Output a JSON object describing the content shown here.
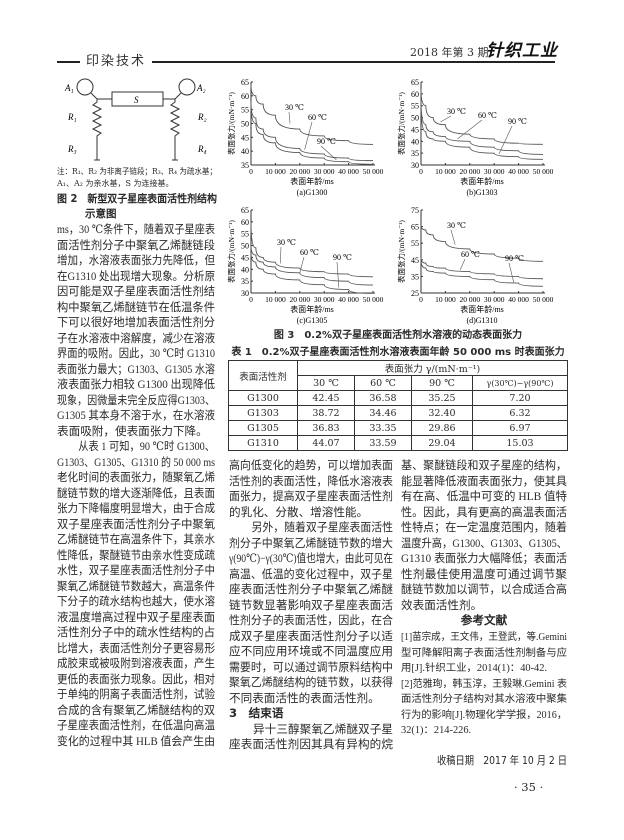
{
  "header": {
    "section": "印染技术",
    "issue": "2018 年第 3 期",
    "journal_logo": "针织工业"
  },
  "figure2": {
    "labels": {
      "a1": "A₁",
      "a2": "A₂",
      "s": "S",
      "r1": "R₁",
      "r2": "R₂",
      "r3": "R₃",
      "r4": "R₄"
    },
    "note": [
      "注：R₁、R₂ 为非离子链段；R₃、R₄ 为疏水基；",
      "A₁、A₂ 为亲水基，S 为连接基。"
    ],
    "caption": [
      "图 2　新型双子星座表面活性剂结构",
      "示意图"
    ]
  },
  "left_column": [
    {
      "t": "ms，30 ℃条件下，随着双子星座表"
    },
    {
      "t": "面活性剂分子中聚氧乙烯醚链段"
    },
    {
      "t": "增加，水溶液表面张力先降低，但"
    },
    {
      "t": "在G1310 处出现增大现象。分析原"
    },
    {
      "t": "因可能是双子星座表面活性剂结"
    },
    {
      "t": "构中聚氧乙烯醚链节在低温条件"
    },
    {
      "t": "下可以很好地增加表面活性剂分"
    },
    {
      "t": "子在水溶液中溶解度，减少在溶液"
    },
    {
      "t": "界面的吸附。因此，30 ℃时 G1310"
    },
    {
      "t": "表面张力最大；G1303、G1305 水溶"
    },
    {
      "t": "液表面张力相较 G1300 出现降低"
    },
    {
      "t": "现象，因微量未完全反应得G1303、"
    },
    {
      "t": "G1305 其本身不溶于水，在水溶液"
    },
    {
      "t": "表面吸附，使表面张力下降。",
      "c": "last"
    },
    {
      "t": "从表 1 可知，90 ℃时 G1300、",
      "c": "ind"
    },
    {
      "t": "G1303、G1305、G1310 的 50 000 ms"
    },
    {
      "t": "老化时间的表面张力，随聚氧乙烯"
    },
    {
      "t": "醚链节数的增大逐渐降低，且表面"
    },
    {
      "t": "张力下降幅度明显增大，由于合成"
    },
    {
      "t": "双子星座表面活性剂分子中聚氧"
    },
    {
      "t": "乙烯醚链节在高温条件下，其亲水"
    },
    {
      "t": "性降低，聚醚链节由亲水性变成疏"
    },
    {
      "t": "水性，双子星座表面活性剂分子中"
    },
    {
      "t": "聚氧乙烯醚链节数越大，高温条件"
    },
    {
      "t": "下分子的疏水结构也越大，使水溶"
    },
    {
      "t": "液温度增高过程中双子星座表面"
    },
    {
      "t": "活性剂分子中的疏水性结构的占"
    },
    {
      "t": "比增大，表面活性剂分子更容易形"
    },
    {
      "t": "成胶束或被吸附到溶液表面，产生"
    },
    {
      "t": "更低的表面张力现象。因此，相对"
    },
    {
      "t": "于单纯的阴离子表面活性剂，试验"
    },
    {
      "t": "合成的含有聚氧乙烯醚结构的双"
    },
    {
      "t": "子星座表面活性剂，在低温向高温"
    },
    {
      "t": "变化的过程中其 HLB 值会产生由"
    }
  ],
  "middle_column": [
    {
      "t": "高向低变化的趋势，可以增加表面"
    },
    {
      "t": "活性剂的表面活性，降低水溶液表"
    },
    {
      "t": "面张力，提高双子星座表面活性剂"
    },
    {
      "t": "的乳化、分散、增溶性能。",
      "c": "last"
    },
    {
      "t": "另外，随着双子星座表面活性",
      "c": "ind"
    },
    {
      "t": "剂分子中聚氧乙烯醚链节数的增大"
    },
    {
      "t": "γ(90℃)−γ(30℃)值也增大，由此可见在"
    },
    {
      "t": "高温、低温的变化过程中，双子星"
    },
    {
      "t": "座表面活性剂分子中聚氧乙烯醚"
    },
    {
      "t": "链节数显著影响双子星座表面活"
    },
    {
      "t": "性剂分子的表面活性，因此，在合"
    },
    {
      "t": "成双子星座表面活性剂分子以适"
    },
    {
      "t": "应不同应用环境或不同温度应用"
    },
    {
      "t": "需要时，可以通过调节原料结构中"
    },
    {
      "t": "聚氧乙烯醚结构的链节数，以获得"
    },
    {
      "t": "不同表面活性的表面活性剂。",
      "c": "last"
    },
    {
      "t": "3　结束语",
      "c": "head"
    },
    {
      "t": "异十三醇聚氧乙烯醚双子星",
      "c": "ind"
    },
    {
      "t": "座表面活性剂因其具有异构的烷"
    }
  ],
  "right_column": [
    {
      "t": "基、聚醚链段和双子星座的结构，"
    },
    {
      "t": "能显著降低液面表面张力，使其具"
    },
    {
      "t": "有在高、低温中可变的 HLB 值特"
    },
    {
      "t": "性。因此，具有更高的高温表面活"
    },
    {
      "t": "性特点；在一定温度范围内，随着"
    },
    {
      "t": "温度升高，G1300、G1303、G1305、"
    },
    {
      "t": "G1310 表面张力大幅降低；表面活"
    },
    {
      "t": "性剂最佳使用温度可通过调节聚"
    },
    {
      "t": "醚链节数加以调节，以合成适合高"
    },
    {
      "t": "效表面活性剂。",
      "c": "last"
    },
    {
      "t": "参考文献",
      "c": "center"
    }
  ],
  "references": [
    {
      "t": "[1]苗宗成，王文伟，王登武，等.Gemini"
    },
    {
      "t": "型可降解阳离子表面活性剂制备与应"
    },
    {
      "t": "用[J].针织工业，2014(1)：40-42.",
      "c": "last"
    },
    {
      "t": "[2]范雅珣，韩玉淳，王毅琳.Gemini 表"
    },
    {
      "t": "面活性剂分子结构对其水溶液中聚集"
    },
    {
      "t": "行为的影响[J].物理化学学报，2016，"
    },
    {
      "t": "32(1)：214-226.",
      "c": "last"
    }
  ],
  "received": "收稿日期　2017 年 10 月 2 日",
  "page_number": "· 35 ·",
  "figure3": {
    "caption": "图 3　0.2%双子星座表面活性剂水溶液的动态表面张力"
  },
  "chart_data": [
    {
      "type": "line",
      "caption": "(a)G1300",
      "xlabel": "表面年龄/ms",
      "ylabel": "表面张力/(mN·m⁻¹)",
      "xlim": [
        0,
        50000
      ],
      "ylim": [
        35,
        65
      ],
      "yticks": [
        35,
        40,
        45,
        50,
        55,
        60,
        65
      ],
      "xticks": [
        0,
        10000,
        20000,
        30000,
        40000,
        50000
      ],
      "xtick_labels": [
        "0",
        "10 000",
        "20 000",
        "30 000",
        "40 000",
        "50 000"
      ],
      "x": [
        0,
        2000,
        5000,
        10000,
        20000,
        30000,
        40000,
        50000
      ],
      "series": [
        {
          "name": "30 ℃",
          "values": [
            64,
            60,
            57,
            53,
            48,
            45.5,
            43.8,
            42.45
          ]
        },
        {
          "name": "60 ℃",
          "values": [
            58,
            52,
            48,
            45,
            41,
            39,
            37.5,
            36.58
          ]
        },
        {
          "name": "90 ℃",
          "values": [
            57,
            50,
            46,
            43,
            39.5,
            37.5,
            36.2,
            35.25
          ]
        }
      ]
    },
    {
      "type": "line",
      "caption": "(b)G1303",
      "xlabel": "表面年龄/ms",
      "ylabel": "表面张力/(mN·m⁻¹)",
      "xlim": [
        0,
        50000
      ],
      "ylim": [
        30,
        65
      ],
      "yticks": [
        30,
        35,
        40,
        45,
        50,
        55,
        60,
        65
      ],
      "xticks": [
        0,
        10000,
        20000,
        30000,
        40000,
        50000
      ],
      "xtick_labels": [
        "0",
        "10 000",
        "20 000",
        "30 000",
        "40 000",
        "50 000"
      ],
      "x": [
        0,
        2000,
        5000,
        10000,
        20000,
        30000,
        40000,
        50000
      ],
      "series": [
        {
          "name": "30 ℃",
          "values": [
            62,
            55,
            50,
            47,
            43,
            41,
            39.2,
            38.72
          ]
        },
        {
          "name": "60 ℃",
          "values": [
            58,
            47,
            44,
            42,
            40,
            37.5,
            36,
            34.46
          ]
        },
        {
          "name": "90 ℃",
          "values": [
            56,
            44,
            41,
            40,
            37.5,
            35,
            33.5,
            32.4
          ]
        }
      ]
    },
    {
      "type": "line",
      "caption": "(c)G1305",
      "xlabel": "表面年龄/ms",
      "ylabel": "表面张力/(mN·m⁻¹)",
      "xlim": [
        0,
        50000
      ],
      "ylim": [
        30,
        65
      ],
      "yticks": [
        30,
        35,
        40,
        45,
        50,
        55,
        60,
        65
      ],
      "xticks": [
        0,
        10000,
        20000,
        30000,
        40000,
        50000
      ],
      "xtick_labels": [
        "0",
        "10 000",
        "20 000",
        "30 000",
        "40 000",
        "50 000"
      ],
      "x": [
        0,
        2000,
        5000,
        10000,
        20000,
        30000,
        40000,
        50000
      ],
      "series": [
        {
          "name": "30 ℃",
          "values": [
            60,
            49,
            45,
            43,
            40.5,
            39,
            38,
            36.83
          ]
        },
        {
          "name": "60 ℃",
          "values": [
            50,
            46,
            43,
            41,
            38.5,
            36.5,
            35,
            33.35
          ]
        },
        {
          "name": "90 ℃",
          "values": [
            47,
            43,
            40,
            38,
            35.5,
            33.5,
            31.5,
            29.86
          ]
        }
      ]
    },
    {
      "type": "line",
      "caption": "(d)G1310",
      "xlabel": "表面年龄/ms",
      "ylabel": "表面张力/(mN·m⁻¹)",
      "xlim": [
        0,
        50000
      ],
      "ylim": [
        25,
        75
      ],
      "yticks": [
        25,
        35,
        45,
        55,
        65,
        75
      ],
      "xticks": [
        0,
        10000,
        20000,
        30000,
        40000,
        50000
      ],
      "xtick_labels": [
        "0",
        "10 000",
        "20 000",
        "30 000",
        "40 000",
        "50 000"
      ],
      "x": [
        0,
        2000,
        5000,
        10000,
        20000,
        30000,
        40000,
        50000
      ],
      "series": [
        {
          "name": "30 ℃",
          "values": [
            66,
            63,
            60,
            56,
            51.5,
            48.5,
            46,
            44.07
          ]
        },
        {
          "name": "60 ℃",
          "values": [
            46,
            43,
            41,
            40,
            38,
            36.5,
            35,
            33.59
          ]
        },
        {
          "name": "90 ℃",
          "values": [
            45,
            40,
            38,
            37,
            35,
            33,
            31,
            29.04
          ]
        }
      ]
    }
  ],
  "table1": {
    "title": "表 1　0.2%双子星座表面活性剂水溶液表面年龄 50 000 ms 时表面张力",
    "row_header": "表面活性剂",
    "group_header": "表面张力 γ/(mN·m⁻¹)",
    "columns": [
      "30 ℃",
      "60 ℃",
      "90 ℃",
      "γ(30℃)−γ(90℃)"
    ],
    "rows": [
      {
        "name": "G1300",
        "values": [
          "42.45",
          "36.58",
          "35.25",
          "7.20"
        ]
      },
      {
        "name": "G1303",
        "values": [
          "38.72",
          "34.46",
          "32.40",
          "6.32"
        ]
      },
      {
        "name": "G1305",
        "values": [
          "36.83",
          "33.35",
          "29.86",
          "6.97"
        ]
      },
      {
        "name": "G1310",
        "values": [
          "44.07",
          "33.59",
          "29.04",
          "15.03"
        ]
      }
    ]
  }
}
